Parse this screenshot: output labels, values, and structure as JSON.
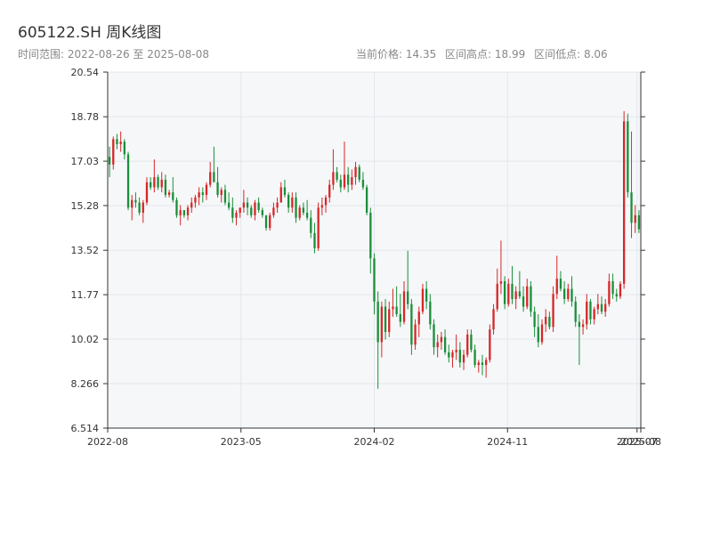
{
  "title": "605122.SH 周K线图",
  "subtitle": "时间范围: 2022-08-26 至 2025-08-08",
  "stats": {
    "current": "当前价格: 14.35",
    "high": "区间高点: 18.99",
    "low": "区间低点: 8.06"
  },
  "colors": {
    "up": "#d62728",
    "down": "#1a8f3a",
    "grid": "#e3e7ec",
    "plot_bg": "#f6f7f9",
    "axis": "#333333"
  },
  "chart_data": {
    "type": "candlestick",
    "title": "605122.SH 周K线图",
    "xlabel": "",
    "ylabel": "",
    "ylim": [
      6.514,
      20.54
    ],
    "yticks": [
      6.514,
      8.266,
      10.02,
      11.77,
      13.52,
      15.28,
      17.03,
      18.78,
      20.54
    ],
    "ytick_labels": [
      "6.514",
      "8.266",
      "10.02",
      "11.77",
      "13.52",
      "15.28",
      "17.03",
      "18.78",
      "20.54"
    ],
    "xtick_labels": [
      "2022-08",
      "2023-05",
      "2024-02",
      "2024-11",
      "2025-07",
      "2025-08"
    ],
    "grid": true,
    "series": [
      {
        "values": [
          [
            17.2,
            17.6,
            16.4,
            16.9
          ],
          [
            16.9,
            18.0,
            16.7,
            17.9
          ],
          [
            17.9,
            18.1,
            17.5,
            17.7
          ],
          [
            17.7,
            18.2,
            17.4,
            17.8
          ],
          [
            17.8,
            17.9,
            17.1,
            17.3
          ],
          [
            17.3,
            17.4,
            15.1,
            15.2
          ],
          [
            15.2,
            15.7,
            14.7,
            15.5
          ],
          [
            15.5,
            15.8,
            15.2,
            15.4
          ],
          [
            15.4,
            15.6,
            14.9,
            15.0
          ],
          [
            15.0,
            15.5,
            14.6,
            15.4
          ],
          [
            15.4,
            16.4,
            15.3,
            16.2
          ],
          [
            16.2,
            16.4,
            15.9,
            16.0
          ],
          [
            16.0,
            17.1,
            15.8,
            16.4
          ],
          [
            16.4,
            16.5,
            15.9,
            16.0
          ],
          [
            16.0,
            16.6,
            15.8,
            16.3
          ],
          [
            16.3,
            16.5,
            15.6,
            15.7
          ],
          [
            15.7,
            15.9,
            15.6,
            15.8
          ],
          [
            15.8,
            16.4,
            15.4,
            15.5
          ],
          [
            15.5,
            15.6,
            14.8,
            14.9
          ],
          [
            14.9,
            15.3,
            14.5,
            15.1
          ],
          [
            15.1,
            15.1,
            14.8,
            14.9
          ],
          [
            14.9,
            15.3,
            14.7,
            15.2
          ],
          [
            15.2,
            15.6,
            15.0,
            15.4
          ],
          [
            15.4,
            15.7,
            15.2,
            15.6
          ],
          [
            15.6,
            16.0,
            15.3,
            15.8
          ],
          [
            15.8,
            16.0,
            15.4,
            15.7
          ],
          [
            15.7,
            16.2,
            15.5,
            16.1
          ],
          [
            16.1,
            17.0,
            16.0,
            16.6
          ],
          [
            16.6,
            17.6,
            16.3,
            16.2
          ],
          [
            16.2,
            16.8,
            15.6,
            15.7
          ],
          [
            15.7,
            16.0,
            15.4,
            15.9
          ],
          [
            15.9,
            16.1,
            15.3,
            15.4
          ],
          [
            15.4,
            15.8,
            15.1,
            15.2
          ],
          [
            15.2,
            15.6,
            14.6,
            14.8
          ],
          [
            14.8,
            15.1,
            14.5,
            15.0
          ],
          [
            15.0,
            15.2,
            14.8,
            15.2
          ],
          [
            15.2,
            15.9,
            15.0,
            15.4
          ],
          [
            15.4,
            15.6,
            14.9,
            15.2
          ],
          [
            15.2,
            15.3,
            14.8,
            14.9
          ],
          [
            14.9,
            15.5,
            14.7,
            15.4
          ],
          [
            15.4,
            15.6,
            15.0,
            15.1
          ],
          [
            15.1,
            15.2,
            14.8,
            14.9
          ],
          [
            14.9,
            14.9,
            14.3,
            14.4
          ],
          [
            14.4,
            15.0,
            14.3,
            14.9
          ],
          [
            14.9,
            15.4,
            14.8,
            15.2
          ],
          [
            15.2,
            15.6,
            15.0,
            15.4
          ],
          [
            15.4,
            16.2,
            15.4,
            16.0
          ],
          [
            16.0,
            16.3,
            15.6,
            15.7
          ],
          [
            15.7,
            15.8,
            15.0,
            15.2
          ],
          [
            15.2,
            15.8,
            15.0,
            15.6
          ],
          [
            15.6,
            15.8,
            14.6,
            14.8
          ],
          [
            14.8,
            15.3,
            14.7,
            15.2
          ],
          [
            15.2,
            15.4,
            14.9,
            15.0
          ],
          [
            15.0,
            15.5,
            14.7,
            14.8
          ],
          [
            14.8,
            15.1,
            14.0,
            14.2
          ],
          [
            14.2,
            14.6,
            13.4,
            13.6
          ],
          [
            13.6,
            15.4,
            13.5,
            15.2
          ],
          [
            15.2,
            15.6,
            14.9,
            15.3
          ],
          [
            15.3,
            15.7,
            15.0,
            15.6
          ],
          [
            15.6,
            16.3,
            15.4,
            16.1
          ],
          [
            16.1,
            17.5,
            15.9,
            16.6
          ],
          [
            16.6,
            16.8,
            16.2,
            16.3
          ],
          [
            16.3,
            16.5,
            15.8,
            16.0
          ],
          [
            16.0,
            17.8,
            15.9,
            16.5
          ],
          [
            16.5,
            16.8,
            15.8,
            16.1
          ],
          [
            16.1,
            16.7,
            15.9,
            16.4
          ],
          [
            16.4,
            17.0,
            16.1,
            16.8
          ],
          [
            16.8,
            16.9,
            16.2,
            16.3
          ],
          [
            16.3,
            16.6,
            15.9,
            16.0
          ],
          [
            16.0,
            16.1,
            14.9,
            15.0
          ],
          [
            15.0,
            15.2,
            12.6,
            13.2
          ],
          [
            13.2,
            13.4,
            11.0,
            11.5
          ],
          [
            11.5,
            11.9,
            8.06,
            9.9
          ],
          [
            9.9,
            11.5,
            9.3,
            11.3
          ],
          [
            11.3,
            11.6,
            10.0,
            10.3
          ],
          [
            10.3,
            11.5,
            10.1,
            11.2
          ],
          [
            11.2,
            12.0,
            10.9,
            11.3
          ],
          [
            11.3,
            12.1,
            10.9,
            11.0
          ],
          [
            11.0,
            11.8,
            10.5,
            10.7
          ],
          [
            10.7,
            12.3,
            10.6,
            11.9
          ],
          [
            11.9,
            13.5,
            11.2,
            11.4
          ],
          [
            11.4,
            11.6,
            9.4,
            9.8
          ],
          [
            9.8,
            10.8,
            9.6,
            10.6
          ],
          [
            10.6,
            11.3,
            10.1,
            11.1
          ],
          [
            11.1,
            12.2,
            11.0,
            12.0
          ],
          [
            12.0,
            12.3,
            11.2,
            11.5
          ],
          [
            11.5,
            11.8,
            10.4,
            10.6
          ],
          [
            10.6,
            10.8,
            9.4,
            9.7
          ],
          [
            9.7,
            10.2,
            9.3,
            9.9
          ],
          [
            9.9,
            10.3,
            9.6,
            10.1
          ],
          [
            10.1,
            10.4,
            9.4,
            9.5
          ],
          [
            9.5,
            9.8,
            9.1,
            9.3
          ],
          [
            9.3,
            9.6,
            8.9,
            9.5
          ],
          [
            9.5,
            10.2,
            9.2,
            9.6
          ],
          [
            9.6,
            9.9,
            8.9,
            9.1
          ],
          [
            9.1,
            9.6,
            8.8,
            9.4
          ],
          [
            9.4,
            10.4,
            9.3,
            10.2
          ],
          [
            10.2,
            10.4,
            9.5,
            9.6
          ],
          [
            9.6,
            9.8,
            8.9,
            9.0
          ],
          [
            9.0,
            9.2,
            8.7,
            9.1
          ],
          [
            9.1,
            9.4,
            8.6,
            9.0
          ],
          [
            9.0,
            9.3,
            8.5,
            9.2
          ],
          [
            9.2,
            10.6,
            9.1,
            10.4
          ],
          [
            10.4,
            11.4,
            10.2,
            11.2
          ],
          [
            11.2,
            12.8,
            11.1,
            12.2
          ],
          [
            12.2,
            13.9,
            11.8,
            12.3
          ],
          [
            12.3,
            12.5,
            11.2,
            11.4
          ],
          [
            11.4,
            12.4,
            11.3,
            12.2
          ],
          [
            12.2,
            12.9,
            11.4,
            11.6
          ],
          [
            11.6,
            12.1,
            11.2,
            11.9
          ],
          [
            11.9,
            12.7,
            11.6,
            11.7
          ],
          [
            11.7,
            12.1,
            11.1,
            11.3
          ],
          [
            11.3,
            12.4,
            11.2,
            12.1
          ],
          [
            12.1,
            12.3,
            10.9,
            11.1
          ],
          [
            11.1,
            11.3,
            10.1,
            10.5
          ],
          [
            10.5,
            11.0,
            9.7,
            9.9
          ],
          [
            9.9,
            10.8,
            9.8,
            10.6
          ],
          [
            10.6,
            11.2,
            10.3,
            10.9
          ],
          [
            10.9,
            11.1,
            10.4,
            10.5
          ],
          [
            10.5,
            12.1,
            10.3,
            11.8
          ],
          [
            11.8,
            13.3,
            11.6,
            12.4
          ],
          [
            12.4,
            12.7,
            11.9,
            12.0
          ],
          [
            12.0,
            12.3,
            11.4,
            11.6
          ],
          [
            11.6,
            12.2,
            11.5,
            12.0
          ],
          [
            12.0,
            12.5,
            11.3,
            11.5
          ],
          [
            11.5,
            11.7,
            10.5,
            10.7
          ],
          [
            10.7,
            11.0,
            9.0,
            10.5
          ],
          [
            10.5,
            10.8,
            10.2,
            10.6
          ],
          [
            10.6,
            11.8,
            10.4,
            11.5
          ],
          [
            11.5,
            11.6,
            10.6,
            10.8
          ],
          [
            10.8,
            11.3,
            10.6,
            11.2
          ],
          [
            11.2,
            11.8,
            11.0,
            11.4
          ],
          [
            11.4,
            11.7,
            11.0,
            11.1
          ],
          [
            11.1,
            11.6,
            10.9,
            11.4
          ],
          [
            11.4,
            12.6,
            11.3,
            12.3
          ],
          [
            12.3,
            12.6,
            11.6,
            11.8
          ],
          [
            11.8,
            12.0,
            11.5,
            11.7
          ],
          [
            11.7,
            12.3,
            11.6,
            12.2
          ],
          [
            12.2,
            19.0,
            12.0,
            18.6
          ],
          [
            18.6,
            18.9,
            15.6,
            15.8
          ],
          [
            15.8,
            18.2,
            14.0,
            14.6
          ],
          [
            14.6,
            15.3,
            14.2,
            14.9
          ],
          [
            14.9,
            15.1,
            14.2,
            14.35
          ]
        ]
      }
    ]
  }
}
